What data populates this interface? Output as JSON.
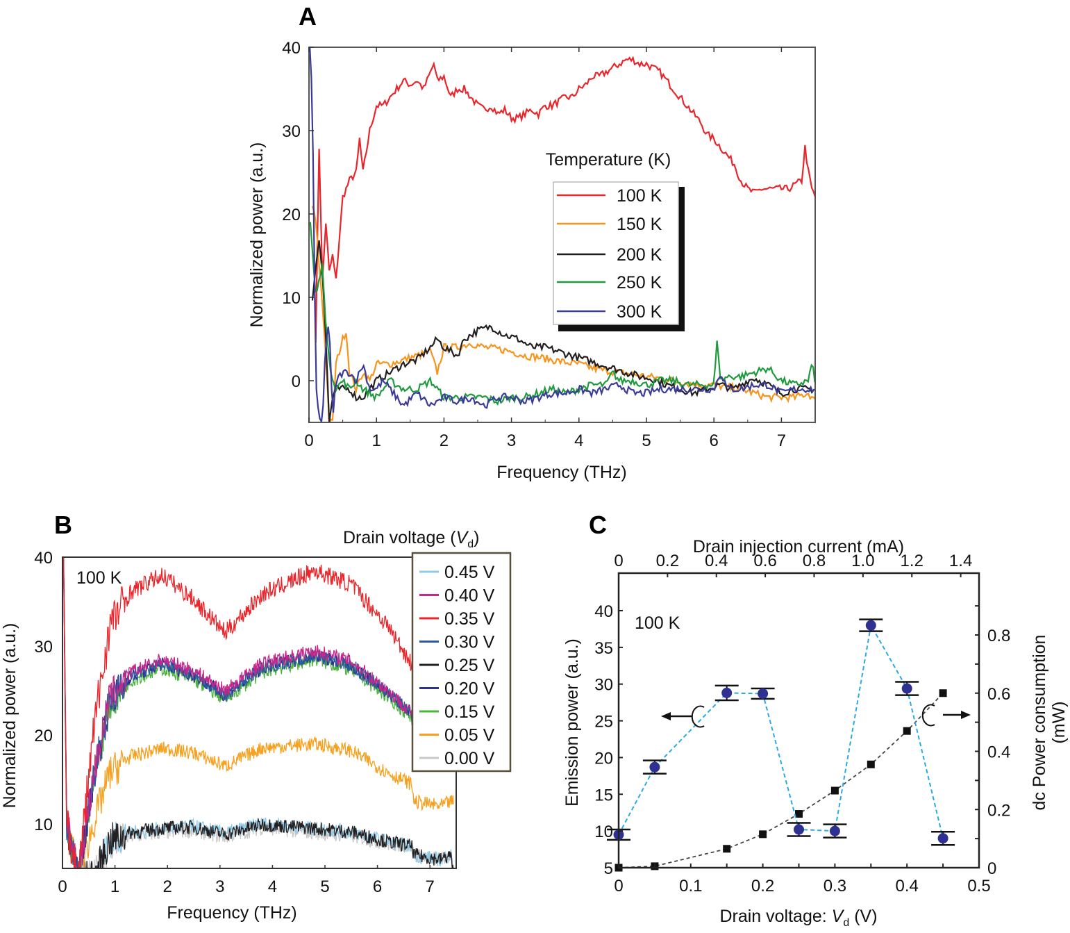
{
  "chart_data": [
    {
      "panel": "A",
      "type": "line",
      "title": "",
      "xlabel": "Frequency (THz)",
      "ylabel": "Normalized power (a.u.)",
      "xlim": [
        0,
        7.5
      ],
      "ylim": [
        -5,
        40
      ],
      "xticks": [
        "0",
        "1",
        "2",
        "3",
        "4",
        "5",
        "6",
        "7"
      ],
      "yticks": [
        "0",
        "10",
        "20",
        "30",
        "40"
      ],
      "legend_title": "Temperature (K)",
      "legend_position": "center-right",
      "series": [
        {
          "name": "100 K",
          "color": "#e8262b",
          "x": [
            0.1,
            0.15,
            0.2,
            0.25,
            0.3,
            0.35,
            0.4,
            0.5,
            0.6,
            0.7,
            0.75,
            0.8,
            0.9,
            1.0,
            1.1,
            1.2,
            1.3,
            1.4,
            1.5,
            1.6,
            1.7,
            1.8,
            1.85,
            1.9,
            2.0,
            2.1,
            2.2,
            2.3,
            2.4,
            2.5,
            2.6,
            2.7,
            2.8,
            2.9,
            3.0,
            3.1,
            3.2,
            3.3,
            3.4,
            3.5,
            3.6,
            3.7,
            3.8,
            3.9,
            4.0,
            4.1,
            4.2,
            4.3,
            4.4,
            4.5,
            4.6,
            4.7,
            4.8,
            4.9,
            5.0,
            5.1,
            5.2,
            5.3,
            5.4,
            5.5,
            5.6,
            5.7,
            5.8,
            5.9,
            6.0,
            6.1,
            6.2,
            6.3,
            6.4,
            6.5,
            6.6,
            6.7,
            6.8,
            6.9,
            7.0,
            7.1,
            7.2,
            7.3,
            7.35,
            7.4,
            7.45,
            7.5
          ],
          "y": [
            5,
            28,
            12,
            19,
            13,
            15,
            12,
            22,
            24,
            25,
            29,
            25,
            30,
            33,
            33,
            34,
            35,
            36,
            35.5,
            36,
            35,
            37,
            38,
            36,
            36.5,
            34,
            35,
            35,
            34,
            33,
            32.5,
            33,
            32,
            32.5,
            31.5,
            31.5,
            32,
            32.5,
            32,
            33,
            33,
            33.5,
            34,
            34,
            35,
            35.5,
            36.5,
            36.5,
            37,
            37.5,
            38,
            38.5,
            38.5,
            38,
            38,
            37.5,
            37,
            36,
            35,
            34,
            33,
            32,
            31,
            29.5,
            29,
            28,
            27,
            26,
            24,
            23,
            22.5,
            23,
            23,
            23,
            23,
            23,
            23.5,
            24,
            28,
            25,
            23,
            22
          ]
        },
        {
          "name": "150 K",
          "color": "#f7941d",
          "x": [
            0.05,
            0.1,
            0.15,
            0.2,
            0.25,
            0.3,
            0.35,
            0.4,
            0.5,
            0.55,
            0.6,
            0.7,
            0.8,
            0.9,
            1.0,
            1.2,
            1.4,
            1.6,
            1.8,
            1.9,
            2.0,
            2.2,
            2.4,
            2.6,
            2.8,
            3.0,
            3.2,
            3.4,
            3.6,
            3.8,
            4.0,
            4.2,
            4.4,
            4.6,
            4.8,
            5.0,
            5.2,
            5.4,
            5.6,
            5.8,
            6.0,
            6.2,
            6.4,
            6.6,
            6.8,
            7.0,
            7.2,
            7.4,
            7.5
          ],
          "y": [
            21,
            19,
            14,
            9,
            3,
            -5,
            -5,
            2,
            5,
            6,
            1,
            -1,
            1,
            0,
            2,
            2,
            2.5,
            3,
            3.5,
            1,
            4,
            4,
            4.5,
            4,
            3.8,
            3.5,
            3,
            2.8,
            2.5,
            2.2,
            2,
            1.5,
            1.2,
            1,
            0.8,
            0.5,
            0.3,
            0,
            -0.3,
            -0.5,
            -0.5,
            -0.8,
            -1,
            -1.5,
            -2,
            -2,
            -2,
            -1.5,
            -2.5
          ]
        },
        {
          "name": "200 K",
          "color": "#231f20",
          "x": [
            0.05,
            0.15,
            0.2,
            0.25,
            0.3,
            0.35,
            0.4,
            0.5,
            0.6,
            0.7,
            0.8,
            1.0,
            1.2,
            1.4,
            1.6,
            1.8,
            1.9,
            2.0,
            2.2,
            2.3,
            2.5,
            2.7,
            2.9,
            3.1,
            3.3,
            3.5,
            3.7,
            3.9,
            4.1,
            4.3,
            4.5,
            4.7,
            4.9,
            5.1,
            5.3,
            5.5,
            5.7,
            5.9,
            6.1,
            6.3,
            6.5,
            6.6,
            6.8,
            7.0,
            7.2,
            7.4,
            7.5
          ],
          "y": [
            10,
            17,
            13,
            5,
            -5,
            -2,
            -1,
            -1,
            -1,
            -2,
            -2,
            0,
            1,
            2,
            2.5,
            4,
            5,
            4,
            3,
            5,
            6,
            6.5,
            5.5,
            5,
            4,
            4,
            3.5,
            3,
            2.5,
            2,
            1.5,
            1,
            0.5,
            0.2,
            -0.5,
            -1,
            -1.5,
            -1,
            -0.5,
            -1,
            0,
            0.3,
            -0.5,
            -1.5,
            -1,
            -1,
            -1
          ]
        },
        {
          "name": "250 K",
          "color": "#1f9a3c",
          "x": [
            0.02,
            0.1,
            0.2,
            0.25,
            0.3,
            0.4,
            0.5,
            0.6,
            0.7,
            0.8,
            1.0,
            1.2,
            1.4,
            1.6,
            1.8,
            2.0,
            2.2,
            2.4,
            2.6,
            2.8,
            3.0,
            3.2,
            3.4,
            3.6,
            3.8,
            4.0,
            4.2,
            4.4,
            4.5,
            4.6,
            4.8,
            5.0,
            5.2,
            5.4,
            5.6,
            5.8,
            6.0,
            6.05,
            6.1,
            6.2,
            6.4,
            6.6,
            6.8,
            7.0,
            7.2,
            7.4,
            7.45,
            7.5
          ],
          "y": [
            19,
            10,
            14,
            7,
            2,
            -1,
            0,
            -1,
            0,
            -1,
            -2,
            0,
            -1,
            -1,
            0,
            -2,
            -2,
            -2,
            -2,
            -2.5,
            -2,
            -2,
            -1.5,
            -1,
            -1.5,
            -1,
            -0.5,
            -0.5,
            1,
            0,
            0,
            -0.5,
            0,
            0,
            -0.5,
            -0.5,
            -0.5,
            5,
            0,
            0.5,
            0.5,
            1,
            1.5,
            0,
            -0.5,
            0,
            2,
            0
          ]
        },
        {
          "name": "300 K",
          "color": "#3a3a98",
          "x": [
            0.01,
            0.05,
            0.1,
            0.15,
            0.2,
            0.25,
            0.3,
            0.35,
            0.4,
            0.5,
            0.6,
            0.7,
            0.8,
            0.9,
            1.0,
            1.1,
            1.2,
            1.4,
            1.6,
            1.8,
            2.0,
            2.2,
            2.4,
            2.6,
            2.8,
            3.0,
            3.2,
            3.4,
            3.6,
            3.8,
            4.0,
            4.2,
            4.4,
            4.6,
            4.8,
            5.0,
            5.2,
            5.4,
            5.6,
            5.8,
            6.0,
            6.1,
            6.2,
            6.4,
            6.6,
            6.8,
            7.0,
            7.2,
            7.4,
            7.5
          ],
          "y": [
            40,
            34,
            0,
            -5,
            -5,
            5,
            7,
            -5,
            0,
            1,
            1,
            0,
            2,
            -1,
            -1,
            0,
            -1,
            -3,
            -1.5,
            -3,
            -2,
            -2.5,
            -2,
            -3,
            -2,
            -2,
            -2.5,
            -2,
            -1.5,
            -1.5,
            -1,
            -1.5,
            -1,
            -0.5,
            -1.5,
            -1.5,
            -1,
            -1,
            -1,
            -1,
            -1,
            1,
            -1,
            -1,
            -0.5,
            -0.5,
            -1.5,
            -1,
            -1,
            -1
          ]
        }
      ]
    },
    {
      "panel": "B",
      "type": "line",
      "title": "",
      "xlabel": "Frequency (THz)",
      "ylabel": "Normalized power (a.u.)",
      "xlim": [
        0,
        7.5
      ],
      "ylim": [
        5,
        40
      ],
      "xticks": [
        "0",
        "1",
        "2",
        "3",
        "4",
        "5",
        "6",
        "7"
      ],
      "yticks": [
        "10",
        "20",
        "30",
        "40"
      ],
      "annotation": "100 K",
      "legend_title": "Drain voltage (V_d)",
      "legend_position": "top-right",
      "series": [
        {
          "name": "0.45 V",
          "color": "#8fcbe8",
          "peak1": 9.5,
          "dip": 9,
          "peak2": 9.5,
          "end": 6.5
        },
        {
          "name": "0.40 V",
          "color": "#c8268a",
          "peak1": 28.5,
          "dip": 25,
          "peak2": 29.5,
          "end": 20.5
        },
        {
          "name": "0.35 V",
          "color": "#e8262b",
          "peak1": 38,
          "dip": 31.5,
          "peak2": 38.5,
          "end": 26
        },
        {
          "name": "0.30 V",
          "color": "#2a5aa0",
          "peak1": 28,
          "dip": 24.5,
          "peak2": 29,
          "end": 20.5
        },
        {
          "name": "0.25 V",
          "color": "#231f20",
          "peak1": 9.5,
          "dip": 8.8,
          "peak2": 9.5,
          "end": 6.5
        },
        {
          "name": "0.20 V",
          "color": "#2e3192",
          "peak1": 28,
          "dip": 24.5,
          "peak2": 29,
          "end": 20.5
        },
        {
          "name": "0.15 V",
          "color": "#4bb43a",
          "peak1": 27.5,
          "dip": 24,
          "peak2": 28.5,
          "end": 20
        },
        {
          "name": "0.05 V",
          "color": "#f7a01d",
          "peak1": 18.5,
          "dip": 16.5,
          "peak2": 19,
          "end": 12.5
        },
        {
          "name": "0.00 V",
          "color": "#c8c8c8",
          "peak1": 9,
          "dip": 8.5,
          "peak2": 9,
          "end": 6.5
        }
      ]
    },
    {
      "panel": "C",
      "type": "scatter",
      "title": "",
      "xlabel": "Drain voltage: V_d (V)",
      "x2label": "Drain injection current (mA)",
      "ylabel": "Emission power (a.u.)",
      "y2label": "dc Power consumption (mW)",
      "xlim": [
        0,
        0.5
      ],
      "ylim": [
        5,
        43
      ],
      "y2lim": [
        0,
        0.94
      ],
      "xticks": [
        "0",
        "0.1",
        "0.2",
        "0.3",
        "0.4",
        "0.5"
      ],
      "x2ticks": [
        "0",
        "0.2",
        "0.4",
        "0.6",
        "0.8",
        "1.0",
        "1.2",
        "1.4"
      ],
      "yticks": [
        "5",
        "10",
        "15",
        "20",
        "25",
        "30",
        "35",
        "40"
      ],
      "y2ticks": [
        "0",
        "0.2",
        "0.4",
        "0.6",
        "0.8"
      ],
      "annotation": "100 K",
      "series": [
        {
          "name": "Emission power",
          "axis": "left",
          "color": "#2e3192",
          "line_color": "#29abe2",
          "x": [
            0,
            0.05,
            0.15,
            0.2,
            0.25,
            0.3,
            0.35,
            0.4,
            0.45
          ],
          "y": [
            9.5,
            18.7,
            28.8,
            28.7,
            10.2,
            10.0,
            38.0,
            29.4,
            9.0
          ],
          "err": [
            0.7,
            0.9,
            1.0,
            0.7,
            0.9,
            0.9,
            0.8,
            0.9,
            0.9
          ]
        },
        {
          "name": "dc Power consumption",
          "axis": "right",
          "color": "#111111",
          "line_color": "#444444",
          "x": [
            0,
            0.05,
            0.15,
            0.2,
            0.25,
            0.3,
            0.35,
            0.4,
            0.45
          ],
          "y": [
            0.0,
            0.005,
            0.065,
            0.115,
            0.185,
            0.265,
            0.355,
            0.47,
            0.6
          ]
        }
      ]
    }
  ]
}
